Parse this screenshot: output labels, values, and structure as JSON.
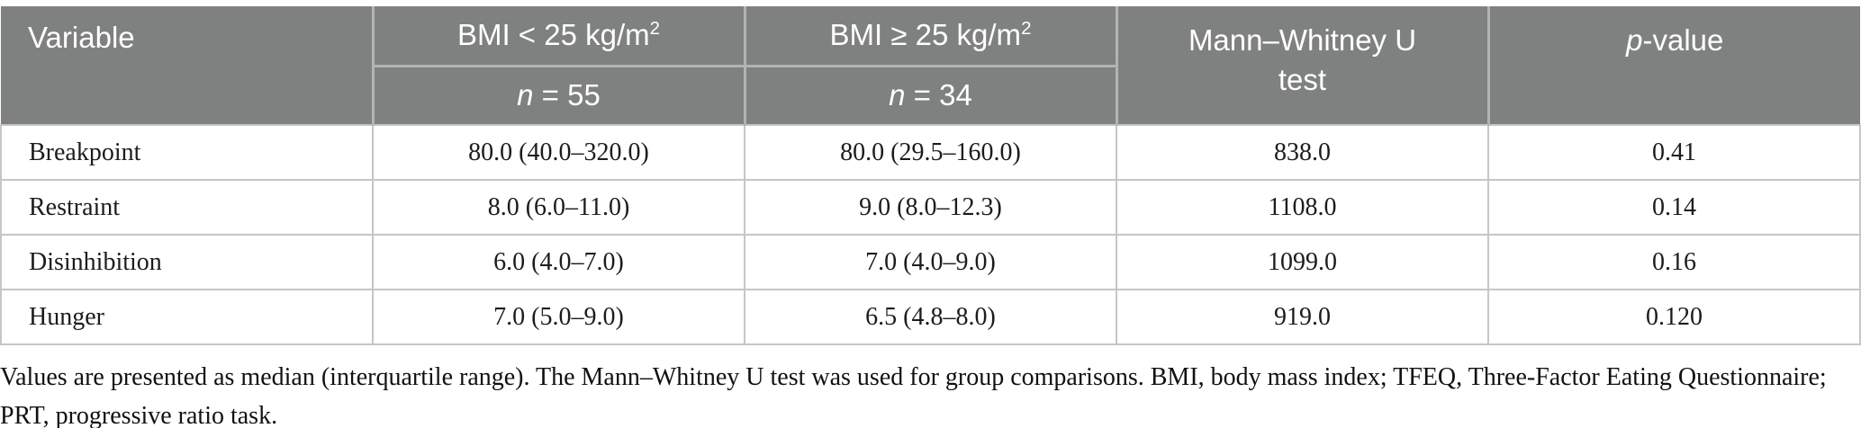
{
  "table": {
    "header": {
      "variable": "Variable",
      "group1": {
        "label_prefix": "BMI < 25 kg/m",
        "label_sup": "2",
        "n_italic": "n",
        "n_rest": " = 55"
      },
      "group2": {
        "label_prefix": "BMI ≥ 25 kg/m",
        "label_sup": "2",
        "n_italic": "n",
        "n_rest": " = 34"
      },
      "test": {
        "line1": "Mann–Whitney U",
        "line2": "test"
      },
      "pvalue": {
        "italic": "p",
        "rest": "-value"
      }
    },
    "rows": [
      {
        "variable": "Breakpoint",
        "bmi_under25": "80.0 (40.0–320.0)",
        "bmi_over25": "80.0 (29.5–160.0)",
        "u": "838.0",
        "p": "0.41"
      },
      {
        "variable": "Restraint",
        "bmi_under25": "8.0 (6.0–11.0)",
        "bmi_over25": "9.0 (8.0–12.3)",
        "u": "1108.0",
        "p": "0.14"
      },
      {
        "variable": "Disinhibition",
        "bmi_under25": "6.0 (4.0–7.0)",
        "bmi_over25": "7.0 (4.0–9.0)",
        "u": "1099.0",
        "p": "0.16"
      },
      {
        "variable": "Hunger",
        "bmi_under25": "7.0 (5.0–9.0)",
        "bmi_over25": "6.5 (4.8–8.0)",
        "u": "919.0",
        "p": "0.120"
      }
    ]
  },
  "footnote": "Values are presented as median (interquartile range). The Mann–Whitney U test was used for group comparisons. BMI, body mass index; TFEQ, Three-Factor Eating Questionnaire; PRT, progressive ratio task.",
  "colors": {
    "header_bg": "#7f8180",
    "header_divider": "#b2b4b3",
    "body_line": "#c6c6c6",
    "header_text": "#ffffff",
    "body_text": "#1c1c1c"
  }
}
